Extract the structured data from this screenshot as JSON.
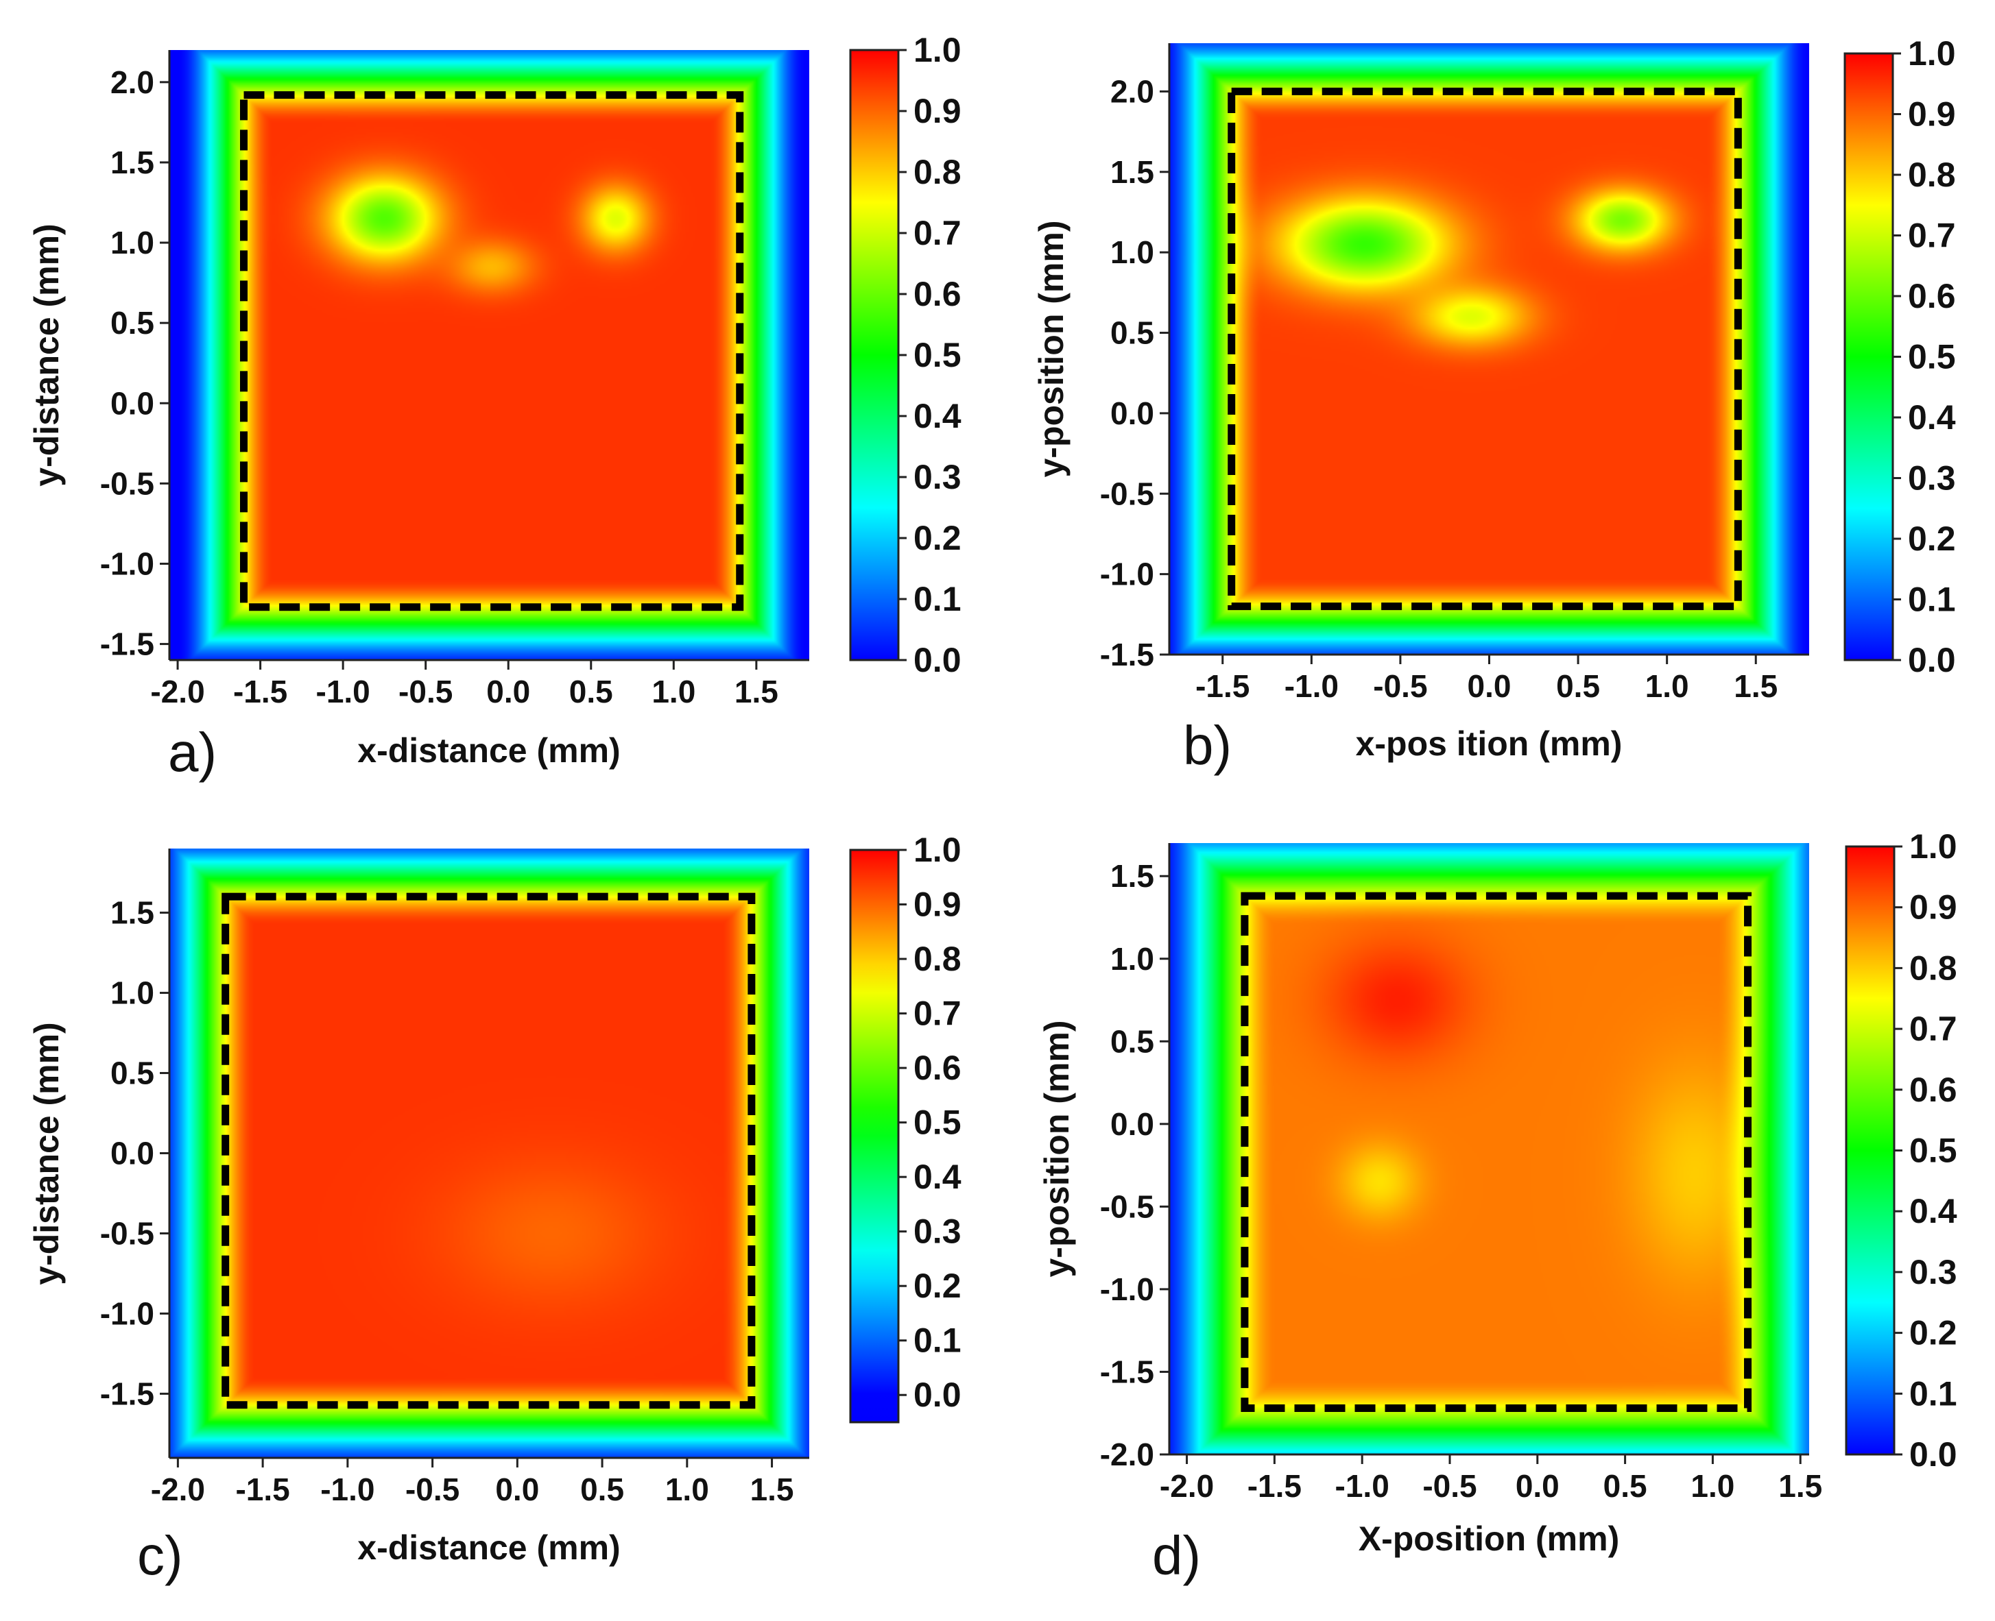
{
  "figure": {
    "colorscale": [
      "#0000ff",
      "#00ffff",
      "#00ff00",
      "#ffff00",
      "#ff0000"
    ],
    "boundary_color": "#000000"
  },
  "chart_data": [
    {
      "type": "heatmap",
      "panel_label": "a)",
      "xlabel": "x-distance (mm)",
      "ylabel": "y-distance (mm)",
      "xlim": [
        -2.05,
        1.82
      ],
      "ylim": [
        -1.6,
        2.2
      ],
      "xticks": [
        "-2.0",
        "-1.5",
        "-1.0",
        "-0.5",
        "0.0",
        "0.5",
        "1.0",
        "1.5"
      ],
      "yticks": [
        "2.0",
        "1.5",
        "1.0",
        "0.5",
        "0.0",
        "-0.5",
        "-1.0",
        "-1.5"
      ],
      "colorbar": {
        "range": [
          0.0,
          1.0
        ],
        "ticks": [
          "1.0",
          "0.9",
          "0.8",
          "0.7",
          "0.6",
          "0.5",
          "0.4",
          "0.3",
          "0.2",
          "0.1",
          "0.0"
        ]
      },
      "boundary_rect": {
        "x0": -1.6,
        "x1": 1.4,
        "y0": -1.27,
        "y1": 1.92
      },
      "plateau_value": 0.95,
      "background_value": 0.0,
      "edge_width_mm": 0.4,
      "features": [
        {
          "x": -0.75,
          "y": 1.15,
          "rx": 0.35,
          "ry": 0.28,
          "value": 0.58
        },
        {
          "x": 0.65,
          "y": 1.15,
          "rx": 0.22,
          "ry": 0.22,
          "value": 0.72
        },
        {
          "x": -0.1,
          "y": 0.85,
          "rx": 0.28,
          "ry": 0.18,
          "value": 0.82
        }
      ]
    },
    {
      "type": "heatmap",
      "panel_label": "b)",
      "xlabel": "x-pos ition (mm)",
      "ylabel": "y-position (mm)",
      "xlim": [
        -1.8,
        1.8
      ],
      "ylim": [
        -1.5,
        2.3
      ],
      "xticks": [
        "-1.5",
        "-1.0",
        "-0.5",
        "0.0",
        "0.5",
        "1.0",
        "1.5"
      ],
      "yticks": [
        "2.0",
        "1.5",
        "1.0",
        "0.5",
        "0.0",
        "-0.5",
        "-1.0",
        "-1.5"
      ],
      "colorbar": {
        "range": [
          0.0,
          1.0
        ],
        "ticks": [
          "1.0",
          "0.9",
          "0.8",
          "0.7",
          "0.6",
          "0.5",
          "0.4",
          "0.3",
          "0.2",
          "0.1",
          "0.0"
        ]
      },
      "boundary_rect": {
        "x0": -1.45,
        "x1": 1.4,
        "y0": -1.2,
        "y1": 2.0
      },
      "plateau_value": 0.94,
      "background_value": 0.0,
      "edge_width_mm": 0.4,
      "features": [
        {
          "x": -0.7,
          "y": 1.05,
          "rx": 0.5,
          "ry": 0.3,
          "value": 0.55
        },
        {
          "x": 0.75,
          "y": 1.2,
          "rx": 0.28,
          "ry": 0.2,
          "value": 0.62
        },
        {
          "x": -0.1,
          "y": 0.6,
          "rx": 0.35,
          "ry": 0.2,
          "value": 0.72
        }
      ]
    },
    {
      "type": "heatmap",
      "panel_label": "c)",
      "xlabel": "x-distance (mm)",
      "ylabel": "y-distance (mm)",
      "xlim": [
        -2.05,
        1.72
      ],
      "ylim": [
        -1.9,
        1.9
      ],
      "xticks": [
        "-2.0",
        "-1.5",
        "-1.0",
        "-0.5",
        "0.0",
        "0.5",
        "1.0",
        "1.5"
      ],
      "yticks": [
        "1.5",
        "1.0",
        "0.5",
        "0.0",
        "-0.5",
        "-1.0",
        "-1.5"
      ],
      "colorbar": {
        "range": [
          -0.05,
          1.0
        ],
        "ticks": [
          "1.0",
          "0.9",
          "0.8",
          "0.7",
          "0.6",
          "0.5",
          "0.4",
          "0.3",
          "0.2",
          "0.1",
          "0.0"
        ]
      },
      "boundary_rect": {
        "x0": -1.72,
        "x1": 1.38,
        "y0": -1.57,
        "y1": 1.6
      },
      "plateau_value": 0.95,
      "background_value": 0.0,
      "edge_width_mm": 0.42,
      "features": [
        {
          "x": 0.2,
          "y": -0.5,
          "rx": 0.7,
          "ry": 0.5,
          "value": 0.9
        }
      ]
    },
    {
      "type": "heatmap",
      "panel_label": "d)",
      "xlabel": "X-position (mm)",
      "ylabel": "y-position (mm)",
      "xlim": [
        -2.1,
        1.55
      ],
      "ylim": [
        -2.0,
        1.7
      ],
      "xticks": [
        "-2.0",
        "-1.5",
        "-1.0",
        "-0.5",
        "0.0",
        "0.5",
        "1.0",
        "1.5"
      ],
      "yticks": [
        "1.5",
        "1.0",
        "0.5",
        "0.0",
        "-0.5",
        "-1.0",
        "-1.5",
        "-2.0"
      ],
      "colorbar": {
        "range": [
          0.0,
          1.0
        ],
        "ticks": [
          "1.0",
          "0.9",
          "0.8",
          "0.7",
          "0.6",
          "0.5",
          "0.4",
          "0.3",
          "0.2",
          "0.1",
          "0.0"
        ]
      },
      "boundary_rect": {
        "x0": -1.67,
        "x1": 1.2,
        "y0": -1.72,
        "y1": 1.38
      },
      "plateau_value": 0.88,
      "background_value": 0.0,
      "edge_width_mm": 0.5,
      "features": [
        {
          "x": -0.8,
          "y": 0.75,
          "rx": 0.45,
          "ry": 0.4,
          "value": 0.97
        },
        {
          "x": -0.9,
          "y": -0.35,
          "rx": 0.25,
          "ry": 0.25,
          "value": 0.78
        },
        {
          "x": 0.9,
          "y": -0.3,
          "rx": 0.4,
          "ry": 0.7,
          "value": 0.8
        }
      ]
    }
  ]
}
